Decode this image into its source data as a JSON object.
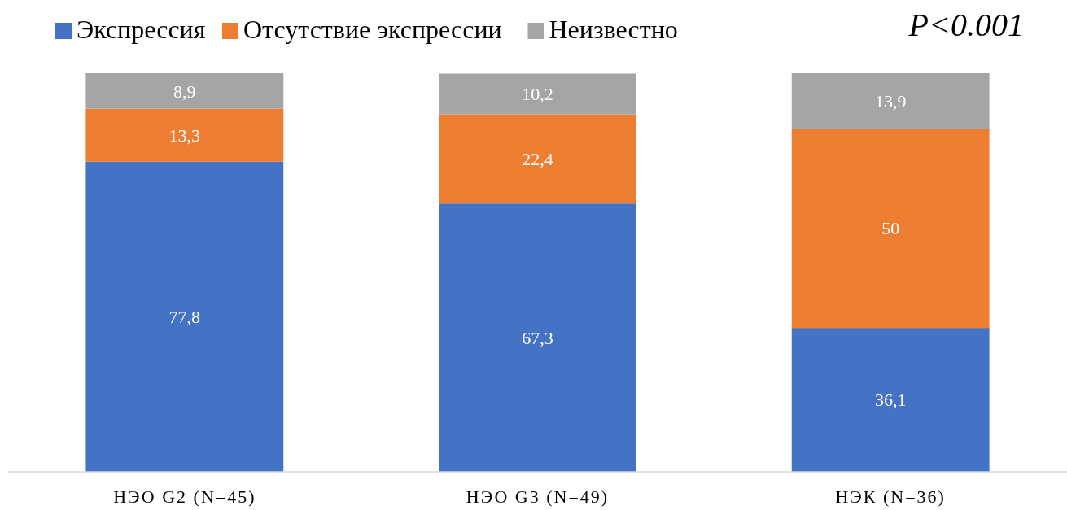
{
  "chart_data": {
    "type": "bar",
    "stacked": true,
    "categories": [
      "НЭО G2 (N=45)",
      "НЭО G3 (N=49)",
      "НЭК (N=36)"
    ],
    "series": [
      {
        "name": "Экспрессия",
        "color": "#4472c4",
        "values": [
          77.8,
          67.3,
          36.1
        ],
        "value_labels": [
          "77,8",
          "67,3",
          "36,1"
        ]
      },
      {
        "name": "Отсутствие экспрессии",
        "color": "#ed7d31",
        "values": [
          13.3,
          22.4,
          50
        ],
        "value_labels": [
          "13,3",
          "22,4",
          "50"
        ]
      },
      {
        "name": "Неизвестно",
        "color": "#a5a5a5",
        "values": [
          8.9,
          10.2,
          13.9
        ],
        "value_labels": [
          "8,9",
          "10,2",
          "13,9"
        ]
      }
    ],
    "annotations": [
      "P<0.001"
    ],
    "legend": "top left"
  }
}
